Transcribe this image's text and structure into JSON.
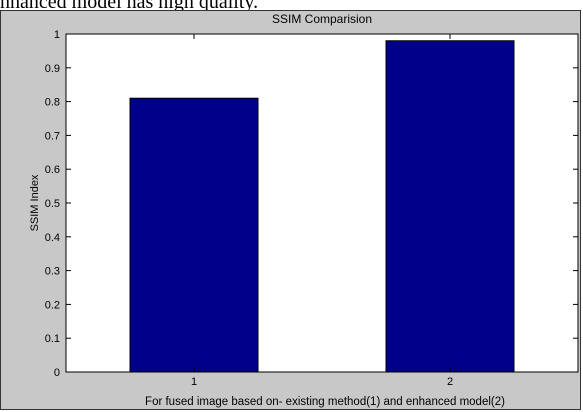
{
  "caption_fragment": "nhanced model has high quality.",
  "chart_data": {
    "type": "bar",
    "title": "SSIM Comparision",
    "xlabel": "For fused image based on- existing method(1) and enhanced model(2)",
    "ylabel": "SSIM Index",
    "categories": [
      "1",
      "2"
    ],
    "values": [
      0.81,
      0.98
    ],
    "ylim": [
      0,
      1
    ],
    "yticks": [
      "0",
      "0.1",
      "0.2",
      "0.3",
      "0.4",
      "0.5",
      "0.6",
      "0.7",
      "0.8",
      "0.9",
      "1"
    ],
    "grid": false,
    "bar_color": "#00008b",
    "figure_background": "#c8c8c8",
    "plot_background": "#ffffff"
  }
}
